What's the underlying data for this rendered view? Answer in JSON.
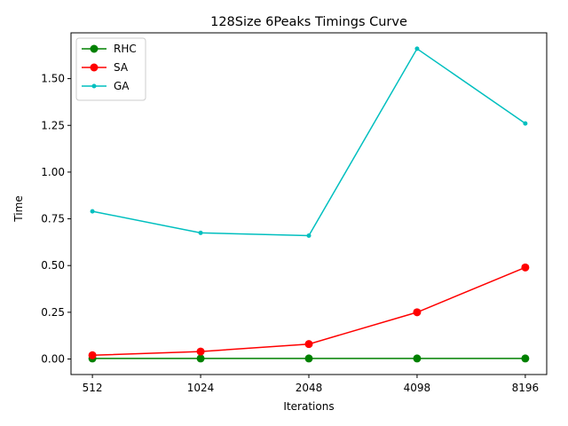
{
  "chart_data": {
    "type": "line",
    "title": "128Size 6Peaks Timings Curve",
    "xlabel": "Iterations",
    "ylabel": "Time",
    "categories": [
      "512",
      "1024",
      "2048",
      "4098",
      "8196"
    ],
    "ylim": [
      -0.083,
      1.745
    ],
    "yticks": [
      "0.00",
      "0.25",
      "0.50",
      "0.75",
      "1.00",
      "1.25",
      "1.50"
    ],
    "ytick_values": [
      0,
      0.25,
      0.5,
      0.75,
      1.0,
      1.25,
      1.5
    ],
    "grid": false,
    "legend_position": "top-left",
    "series": [
      {
        "name": "RHC",
        "color": "#008000",
        "marker": "circle-large",
        "values": [
          0.003,
          0.003,
          0.003,
          0.003,
          0.003
        ]
      },
      {
        "name": "SA",
        "color": "#ff0000",
        "marker": "circle-large",
        "values": [
          0.02,
          0.04,
          0.08,
          0.25,
          0.49
        ]
      },
      {
        "name": "GA",
        "color": "#00bfbf",
        "marker": "circle-small",
        "values": [
          0.79,
          0.675,
          0.66,
          1.66,
          1.26
        ]
      }
    ]
  }
}
